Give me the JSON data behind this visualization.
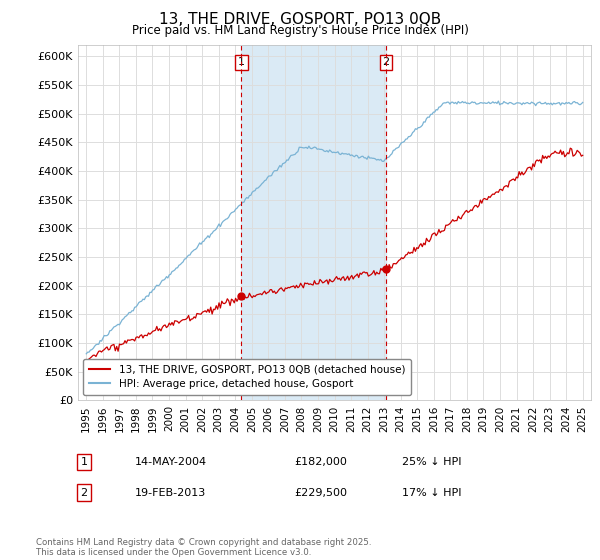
{
  "title": "13, THE DRIVE, GOSPORT, PO13 0QB",
  "subtitle": "Price paid vs. HM Land Registry's House Price Index (HPI)",
  "hpi_label": "HPI: Average price, detached house, Gosport",
  "property_label": "13, THE DRIVE, GOSPORT, PO13 0QB (detached house)",
  "footnote": "Contains HM Land Registry data © Crown copyright and database right 2025.\nThis data is licensed under the Open Government Licence v3.0.",
  "sale1": {
    "num": "1",
    "date": "14-MAY-2004",
    "price": "£182,000",
    "pct": "25% ↓ HPI"
  },
  "sale2": {
    "num": "2",
    "date": "19-FEB-2013",
    "price": "£229,500",
    "pct": "17% ↓ HPI"
  },
  "vline1_x": 2004.37,
  "vline2_x": 2013.12,
  "sale1_price": 182000,
  "sale2_price": 229500,
  "ylim": [
    0,
    620000
  ],
  "xlim": [
    1994.5,
    2025.5
  ],
  "yticks": [
    0,
    50000,
    100000,
    150000,
    200000,
    250000,
    300000,
    350000,
    400000,
    450000,
    500000,
    550000,
    600000
  ],
  "ytick_labels": [
    "£0",
    "£50K",
    "£100K",
    "£150K",
    "£200K",
    "£250K",
    "£300K",
    "£350K",
    "£400K",
    "£450K",
    "£500K",
    "£550K",
    "£600K"
  ],
  "xticks": [
    1995,
    1996,
    1997,
    1998,
    1999,
    2000,
    2001,
    2002,
    2003,
    2004,
    2005,
    2006,
    2007,
    2008,
    2009,
    2010,
    2011,
    2012,
    2013,
    2014,
    2015,
    2016,
    2017,
    2018,
    2019,
    2020,
    2021,
    2022,
    2023,
    2024,
    2025
  ],
  "hpi_color": "#7ab3d4",
  "property_color": "#cc0000",
  "vline_color": "#cc0000",
  "shade_color": "#daeaf5",
  "background_color": "#ffffff",
  "grid_color": "#dddddd"
}
